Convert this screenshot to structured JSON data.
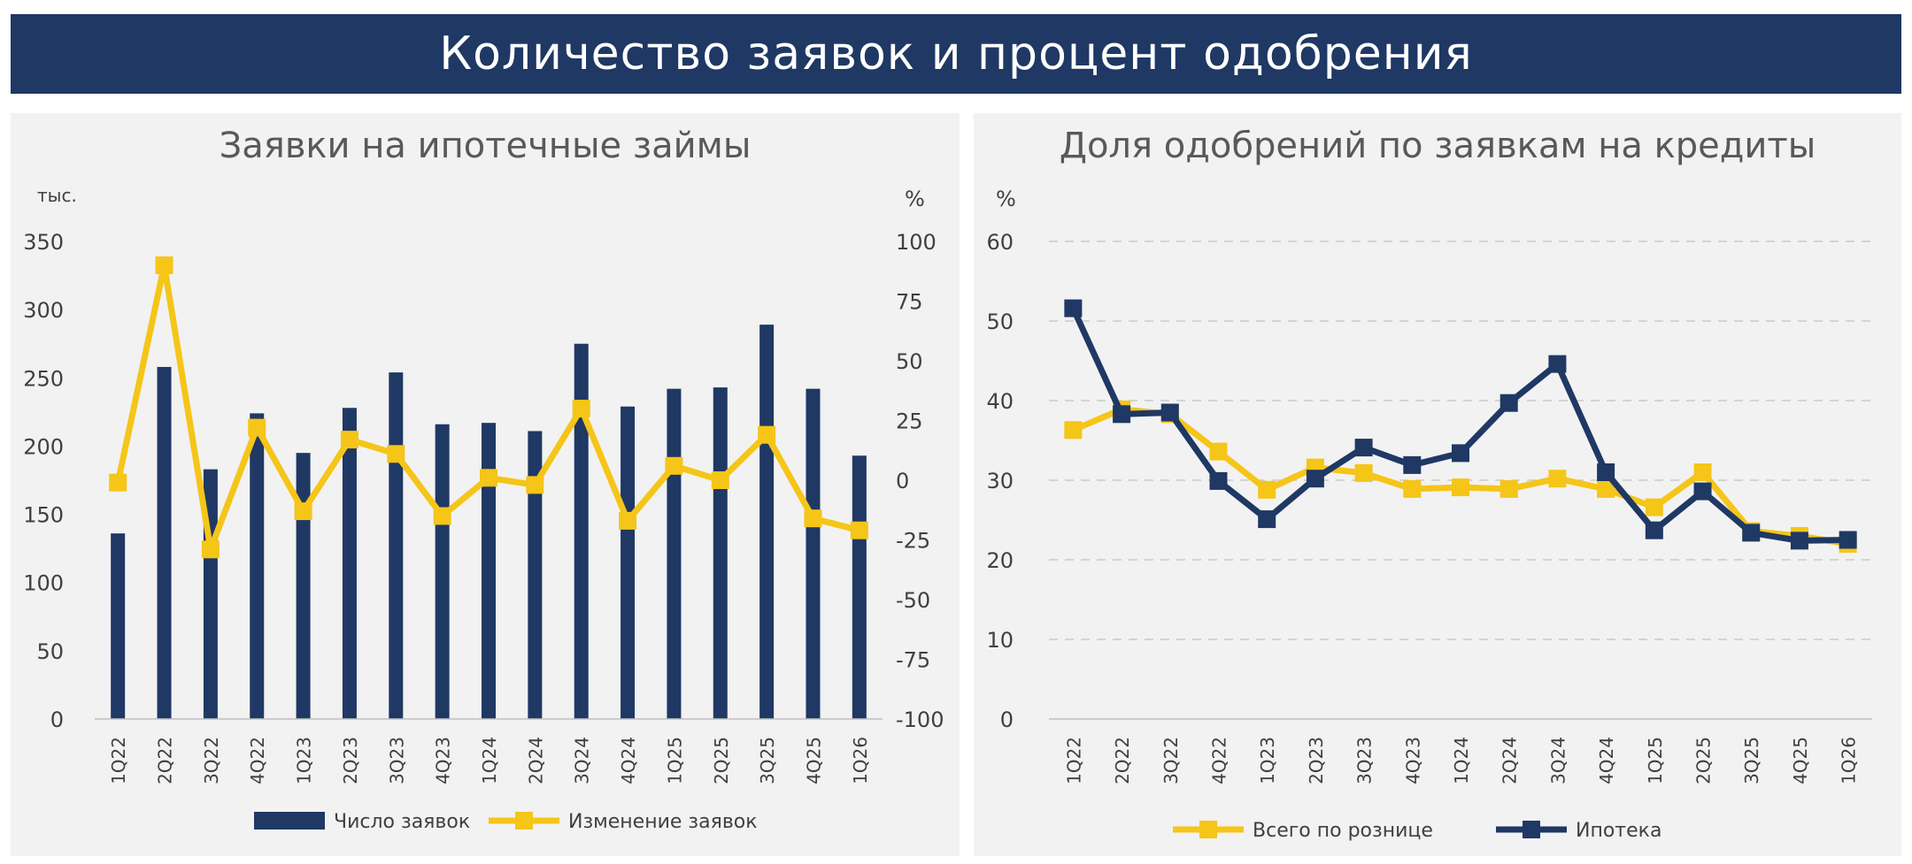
{
  "banner": {
    "title": "Количество заявок и процент одобрения"
  },
  "colors": {
    "navy": "#1f3864",
    "yellow": "#f5c518",
    "grid": "#c9c9c9",
    "axis_text": "#404040",
    "title_text": "#595959"
  },
  "chart_data": [
    {
      "type": "bar+line",
      "title": "Заявки на ипотечные займы",
      "y_left_unit": "тыс.",
      "y_right_unit": "%",
      "ylim_left": [
        0,
        350
      ],
      "ylim_right": [
        -100,
        100
      ],
      "yticks_left": [
        "350",
        "300",
        "250",
        "200",
        "150",
        "100",
        "50",
        "0"
      ],
      "yticks_right": [
        "100",
        "75",
        "50",
        "25",
        "0",
        "-25",
        "-50",
        "-75",
        "-100"
      ],
      "categories": [
        "1Q22",
        "2Q22",
        "3Q22",
        "4Q22",
        "1Q23",
        "2Q23",
        "3Q23",
        "4Q23",
        "1Q24",
        "2Q24",
        "3Q24",
        "4Q24",
        "1Q25",
        "2Q25",
        "3Q25",
        "4Q25",
        "1Q26"
      ],
      "series": [
        {
          "name": "Число заявок",
          "kind": "bar",
          "axis": "left",
          "color": "#1f3864",
          "values": [
            136,
            258,
            183,
            224,
            195,
            228,
            254,
            216,
            217,
            211,
            275,
            229,
            242,
            243,
            289,
            242,
            193
          ]
        },
        {
          "name": "Изменение заявок",
          "kind": "line",
          "axis": "right",
          "color": "#f5c518",
          "values": [
            -1,
            90,
            -29,
            22,
            -13,
            17,
            11,
            -15,
            1,
            -2,
            30,
            -17,
            6,
            0,
            19,
            -16,
            -21
          ]
        }
      ],
      "legend": "bottom",
      "grid": false
    },
    {
      "type": "line",
      "title": "Доля одобрений по заявкам на кредиты",
      "y_unit": "%",
      "ylim": [
        0,
        60
      ],
      "yticks": [
        "60",
        "50",
        "40",
        "30",
        "20",
        "10",
        "0"
      ],
      "categories": [
        "1Q22",
        "2Q22",
        "3Q22",
        "4Q22",
        "1Q23",
        "2Q23",
        "3Q23",
        "4Q23",
        "1Q24",
        "2Q24",
        "3Q24",
        "4Q24",
        "1Q25",
        "2Q25",
        "3Q25",
        "4Q25",
        "1Q26"
      ],
      "series": [
        {
          "name": "Всего по рознице",
          "color": "#f5c518",
          "values": [
            36.3,
            38.9,
            38.3,
            33.6,
            28.8,
            31.6,
            30.9,
            28.9,
            29.1,
            28.9,
            30.2,
            28.9,
            26.6,
            31.0,
            23.6,
            23.0,
            22.0
          ]
        },
        {
          "name": "Ипотека",
          "color": "#1f3864",
          "values": [
            51.6,
            38.3,
            38.5,
            29.9,
            25.1,
            30.2,
            34.1,
            31.9,
            33.4,
            39.7,
            44.6,
            31.0,
            23.7,
            28.6,
            23.4,
            22.4,
            22.5
          ]
        }
      ],
      "legend": "bottom",
      "grid": true
    }
  ]
}
